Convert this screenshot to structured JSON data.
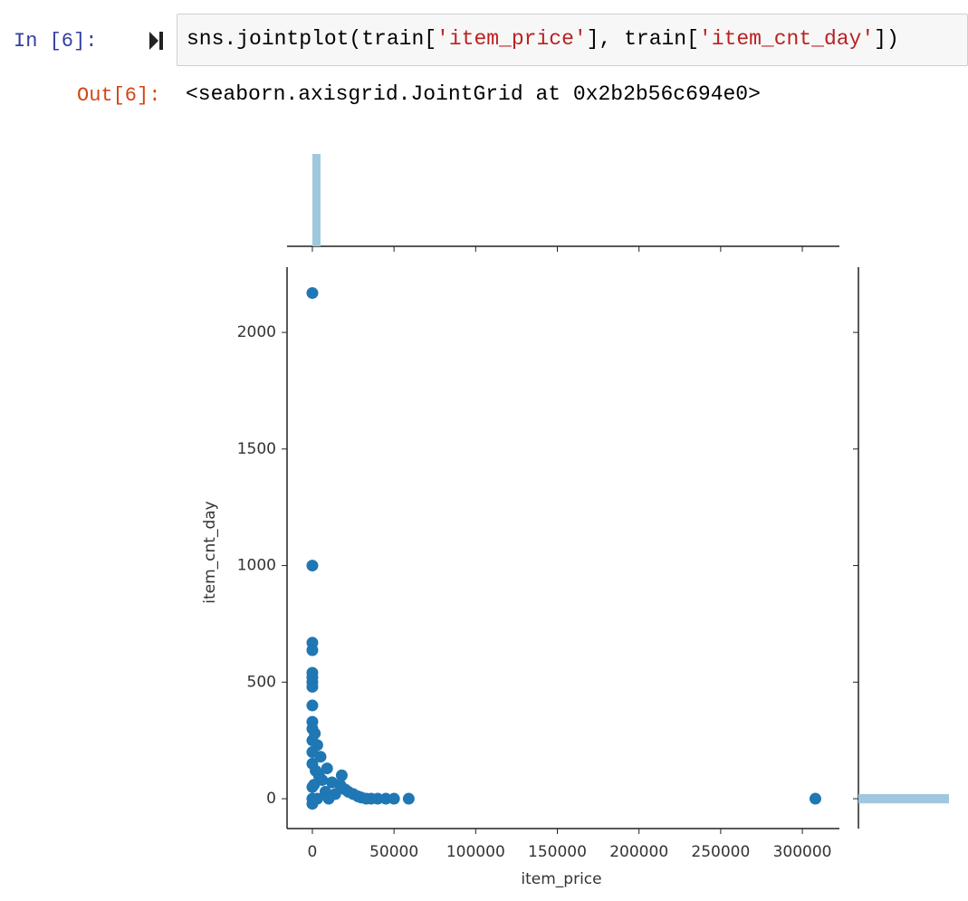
{
  "cell": {
    "prompt_in": "In [6]:",
    "code": [
      {
        "text": "sns.jointplot(train[",
        "color": "#000000"
      },
      {
        "text": "'item_price'",
        "color": "#ba2121"
      },
      {
        "text": "], train[",
        "color": "#000000"
      },
      {
        "text": "'item_cnt_day'",
        "color": "#ba2121"
      },
      {
        "text": "])",
        "color": "#000000"
      }
    ],
    "prompt_out": "Out[6]:",
    "output": "<seaborn.axisgrid.JointGrid at 0x2b2b56c694e0>"
  },
  "chart_data": {
    "type": "scatter",
    "xlabel": "item_price",
    "ylabel": "item_cnt_day",
    "color": "#1f77b4",
    "x": [
      0,
      0,
      0,
      0,
      0,
      0,
      0,
      0,
      0,
      0,
      0,
      0,
      0,
      0,
      0,
      1500,
      3000,
      5000,
      2000,
      4000,
      6000,
      9000,
      12000,
      18000,
      17000,
      20000,
      22000,
      25000,
      28000,
      30000,
      33000,
      36000,
      40000,
      45000,
      50000,
      59000,
      307980,
      0,
      1000,
      8000,
      14000,
      10000,
      3000,
      0
    ],
    "y": [
      2169,
      1000,
      669,
      637,
      540,
      520,
      500,
      480,
      400,
      330,
      300,
      250,
      200,
      150,
      -22,
      280,
      230,
      180,
      120,
      100,
      80,
      130,
      70,
      100,
      60,
      40,
      30,
      20,
      10,
      5,
      0,
      0,
      0,
      0,
      0,
      0,
      0,
      50,
      60,
      30,
      20,
      0,
      0,
      0
    ],
    "xlim": [
      -15500,
      322700
    ],
    "ylim": [
      -128,
      2280
    ],
    "xticks": [
      0,
      50000,
      100000,
      150000,
      200000,
      250000,
      300000
    ],
    "yticks": [
      0,
      500,
      1000,
      1500,
      2000
    ],
    "marginal_x": {
      "bins": [
        0,
        5000
      ],
      "values": [
        1
      ],
      "ylim": [
        0,
        1
      ],
      "color": "#9fc8df"
    },
    "marginal_y": {
      "bins": [
        -20,
        20
      ],
      "values": [
        1
      ],
      "xlim": [
        0,
        1
      ],
      "color": "#9fc8df"
    }
  }
}
